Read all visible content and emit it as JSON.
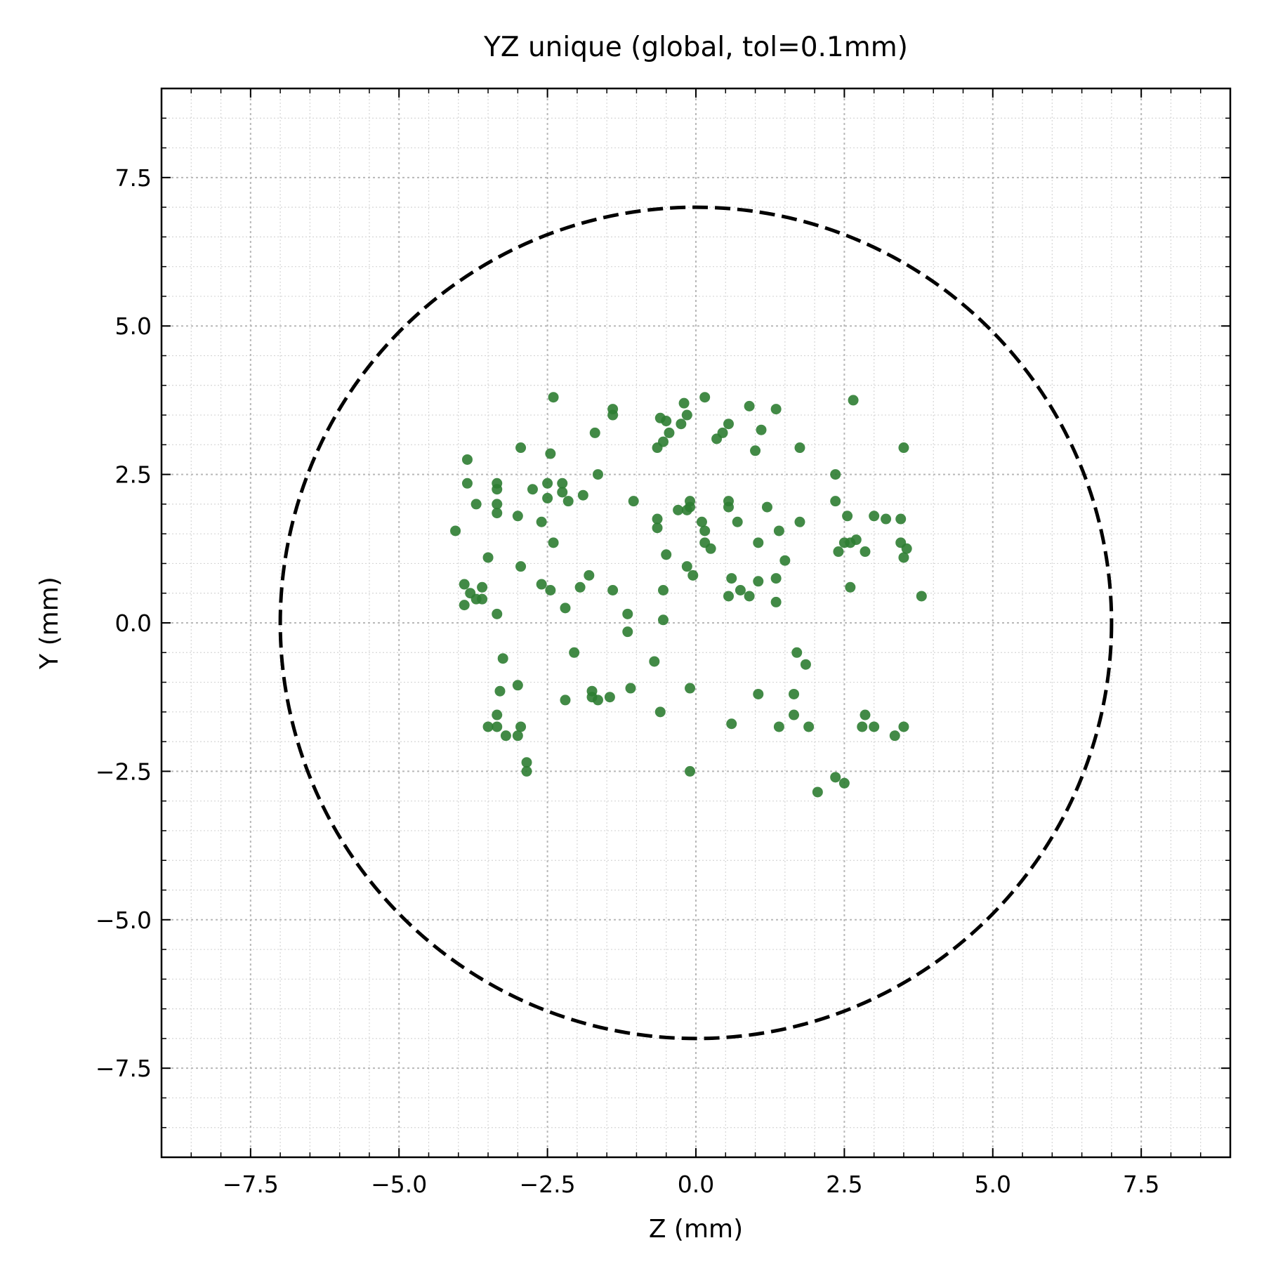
{
  "chart_data": {
    "type": "scatter",
    "title": "YZ unique (global, tol=0.1mm)",
    "xlabel": "Z (mm)",
    "ylabel": "Y (mm)",
    "xlim": [
      -9,
      9
    ],
    "ylim": [
      -9,
      9
    ],
    "x_ticks": [
      -7.5,
      -5.0,
      -2.5,
      0.0,
      2.5,
      5.0,
      7.5
    ],
    "y_ticks": [
      -7.5,
      -5.0,
      -2.5,
      0.0,
      2.5,
      5.0,
      7.5
    ],
    "x_tick_labels": [
      "−7.5",
      "−5.0",
      "−2.5",
      "0.0",
      "2.5",
      "5.0",
      "7.5"
    ],
    "y_tick_labels": [
      "−7.5",
      "−5.0",
      "−2.5",
      "0.0",
      "2.5",
      "5.0",
      "7.5"
    ],
    "grid": true,
    "minor_grid": true,
    "boundary_circle": {
      "center": [
        0,
        0
      ],
      "radius": 7,
      "style": "dashed"
    },
    "point_color": "#2e7d32",
    "points": [
      [
        -2.4,
        3.8
      ],
      [
        -1.4,
        3.6
      ],
      [
        -1.4,
        3.5
      ],
      [
        -0.6,
        3.45
      ],
      [
        -0.5,
        3.4
      ],
      [
        -0.2,
        3.7
      ],
      [
        0.15,
        3.8
      ],
      [
        0.9,
        3.65
      ],
      [
        1.35,
        3.6
      ],
      [
        2.65,
        3.75
      ],
      [
        -0.15,
        3.5
      ],
      [
        -0.25,
        3.35
      ],
      [
        0.55,
        3.35
      ],
      [
        -1.7,
        3.2
      ],
      [
        -0.45,
        3.2
      ],
      [
        -0.55,
        3.05
      ],
      [
        -0.65,
        2.95
      ],
      [
        0.35,
        3.1
      ],
      [
        0.45,
        3.2
      ],
      [
        1.1,
        3.25
      ],
      [
        1.0,
        2.9
      ],
      [
        -2.95,
        2.95
      ],
      [
        -2.45,
        2.85
      ],
      [
        1.75,
        2.95
      ],
      [
        3.5,
        2.95
      ],
      [
        -3.85,
        2.75
      ],
      [
        -1.65,
        2.5
      ],
      [
        2.35,
        2.5
      ],
      [
        -3.85,
        2.35
      ],
      [
        -3.35,
        2.35
      ],
      [
        -3.35,
        2.25
      ],
      [
        -2.5,
        2.35
      ],
      [
        -2.25,
        2.35
      ],
      [
        -2.75,
        2.25
      ],
      [
        -2.25,
        2.2
      ],
      [
        -1.9,
        2.15
      ],
      [
        -2.5,
        2.1
      ],
      [
        -2.15,
        2.05
      ],
      [
        -1.05,
        2.05
      ],
      [
        -0.1,
        2.05
      ],
      [
        0.55,
        2.05
      ],
      [
        2.35,
        2.05
      ],
      [
        -3.7,
        2.0
      ],
      [
        -3.35,
        2.0
      ],
      [
        0.55,
        1.95
      ],
      [
        1.2,
        1.95
      ],
      [
        -0.1,
        1.95
      ],
      [
        -0.3,
        1.9
      ],
      [
        -0.15,
        1.9
      ],
      [
        -3.35,
        1.85
      ],
      [
        -3.0,
        1.8
      ],
      [
        -0.65,
        1.75
      ],
      [
        2.55,
        1.8
      ],
      [
        3.0,
        1.8
      ],
      [
        3.2,
        1.75
      ],
      [
        3.45,
        1.75
      ],
      [
        -2.6,
        1.7
      ],
      [
        0.1,
        1.7
      ],
      [
        0.7,
        1.7
      ],
      [
        1.75,
        1.7
      ],
      [
        -4.05,
        1.55
      ],
      [
        -0.65,
        1.6
      ],
      [
        0.15,
        1.55
      ],
      [
        1.4,
        1.55
      ],
      [
        -2.4,
        1.35
      ],
      [
        0.15,
        1.35
      ],
      [
        1.05,
        1.35
      ],
      [
        2.5,
        1.35
      ],
      [
        2.6,
        1.35
      ],
      [
        2.7,
        1.4
      ],
      [
        3.45,
        1.35
      ],
      [
        0.25,
        1.25
      ],
      [
        2.4,
        1.2
      ],
      [
        2.85,
        1.2
      ],
      [
        3.55,
        1.25
      ],
      [
        3.5,
        1.1
      ],
      [
        -0.5,
        1.15
      ],
      [
        -3.5,
        1.1
      ],
      [
        1.5,
        1.05
      ],
      [
        -2.95,
        0.95
      ],
      [
        -0.15,
        0.95
      ],
      [
        -0.05,
        0.8
      ],
      [
        -1.8,
        0.8
      ],
      [
        0.6,
        0.75
      ],
      [
        1.05,
        0.7
      ],
      [
        1.35,
        0.75
      ],
      [
        -3.9,
        0.65
      ],
      [
        -2.6,
        0.65
      ],
      [
        -1.95,
        0.6
      ],
      [
        -3.6,
        0.6
      ],
      [
        -3.8,
        0.5
      ],
      [
        -2.45,
        0.55
      ],
      [
        -1.4,
        0.55
      ],
      [
        -0.55,
        0.55
      ],
      [
        0.75,
        0.55
      ],
      [
        2.6,
        0.6
      ],
      [
        -3.7,
        0.4
      ],
      [
        -3.6,
        0.4
      ],
      [
        0.55,
        0.45
      ],
      [
        0.9,
        0.45
      ],
      [
        1.35,
        0.35
      ],
      [
        3.8,
        0.45
      ],
      [
        -3.9,
        0.3
      ],
      [
        -2.2,
        0.25
      ],
      [
        -1.15,
        0.15
      ],
      [
        -3.35,
        0.15
      ],
      [
        -0.55,
        0.05
      ],
      [
        -1.15,
        -0.15
      ],
      [
        -2.05,
        -0.5
      ],
      [
        1.7,
        -0.5
      ],
      [
        -3.25,
        -0.6
      ],
      [
        -0.7,
        -0.65
      ],
      [
        1.85,
        -0.7
      ],
      [
        -3.0,
        -1.05
      ],
      [
        -1.75,
        -1.15
      ],
      [
        -1.1,
        -1.1
      ],
      [
        -0.1,
        -1.1
      ],
      [
        -3.3,
        -1.15
      ],
      [
        -1.75,
        -1.25
      ],
      [
        -1.45,
        -1.25
      ],
      [
        -2.2,
        -1.3
      ],
      [
        -1.65,
        -1.3
      ],
      [
        1.05,
        -1.2
      ],
      [
        1.65,
        -1.2
      ],
      [
        -3.35,
        -1.55
      ],
      [
        -0.6,
        -1.5
      ],
      [
        1.65,
        -1.55
      ],
      [
        2.85,
        -1.55
      ],
      [
        -3.5,
        -1.75
      ],
      [
        -3.35,
        -1.75
      ],
      [
        -2.95,
        -1.75
      ],
      [
        0.6,
        -1.7
      ],
      [
        1.4,
        -1.75
      ],
      [
        1.9,
        -1.75
      ],
      [
        2.8,
        -1.75
      ],
      [
        3.0,
        -1.75
      ],
      [
        3.5,
        -1.75
      ],
      [
        -3.2,
        -1.9
      ],
      [
        -3.0,
        -1.9
      ],
      [
        3.35,
        -1.9
      ],
      [
        -2.85,
        -2.35
      ],
      [
        -2.85,
        -2.5
      ],
      [
        -0.1,
        -2.5
      ],
      [
        2.35,
        -2.6
      ],
      [
        2.5,
        -2.7
      ],
      [
        2.05,
        -2.85
      ]
    ]
  }
}
